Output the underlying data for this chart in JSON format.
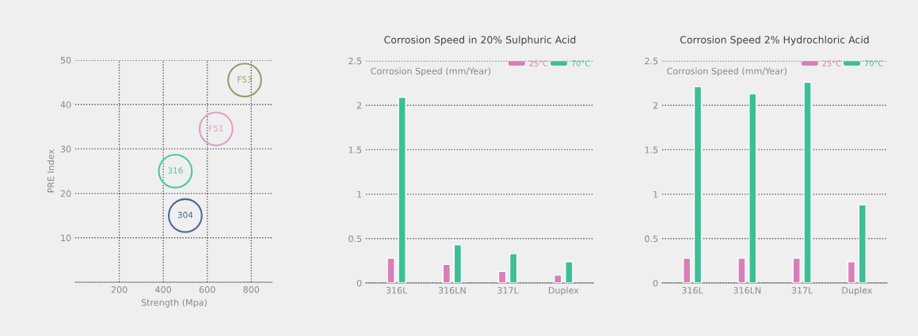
{
  "chart_data": [
    {
      "type": "scatter",
      "xlabel": "Strength (Mpa)",
      "ylabel": "PRE Index",
      "xlim": [
        0,
        900
      ],
      "xticks": [
        200,
        400,
        600,
        800
      ],
      "ylim": [
        0,
        50
      ],
      "yticks": [
        10,
        20,
        30,
        40,
        50
      ],
      "grid": true,
      "marker": "circle",
      "series": [
        {
          "name": "F53",
          "color": "#9a9a6e",
          "x": [
            770
          ],
          "values": [
            45.5
          ]
        },
        {
          "name": "F51",
          "color": "#dca0c4",
          "x": [
            640
          ],
          "values": [
            34.5
          ]
        },
        {
          "name": "316",
          "color": "#4cc8a0",
          "x": [
            455
          ],
          "values": [
            25
          ]
        },
        {
          "name": "304",
          "color": "#4a6894",
          "x": [
            500
          ],
          "values": [
            15
          ]
        }
      ]
    },
    {
      "type": "bar",
      "title": "Corrosion Speed in 20% Sulphuric Acid",
      "ylabel": "Corrosion Speed (mm/Year)",
      "categories": [
        "316L",
        "316LN",
        "317L",
        "Duplex"
      ],
      "ylim": [
        0,
        2.5
      ],
      "yticks": [
        0,
        0.5,
        1,
        1.5,
        2,
        2.5
      ],
      "grid": "y",
      "legend": "top right",
      "series": [
        {
          "name": "25°C",
          "color": "#d77fb8",
          "values": [
            0.28,
            0.21,
            0.13,
            0.09
          ]
        },
        {
          "name": "70°C",
          "color": "#3dbf96",
          "values": [
            2.09,
            0.43,
            0.33,
            0.24
          ]
        }
      ]
    },
    {
      "type": "bar",
      "title": "Corrosion Speed 2% Hydrochloric Acid",
      "ylabel": "Corrosion Speed (mm/Year)",
      "categories": [
        "316L",
        "316LN",
        "317L",
        "Duplex"
      ],
      "ylim": [
        0,
        2.5
      ],
      "yticks": [
        0,
        0.5,
        1,
        1.5,
        2,
        2.5
      ],
      "grid": "y",
      "legend": "top right",
      "series": [
        {
          "name": "25°C",
          "color": "#d77fb8",
          "values": [
            0.28,
            0.28,
            0.28,
            0.24
          ]
        },
        {
          "name": "70°C",
          "color": "#3dbf96",
          "values": [
            2.21,
            2.13,
            2.26,
            0.88
          ]
        }
      ]
    }
  ]
}
